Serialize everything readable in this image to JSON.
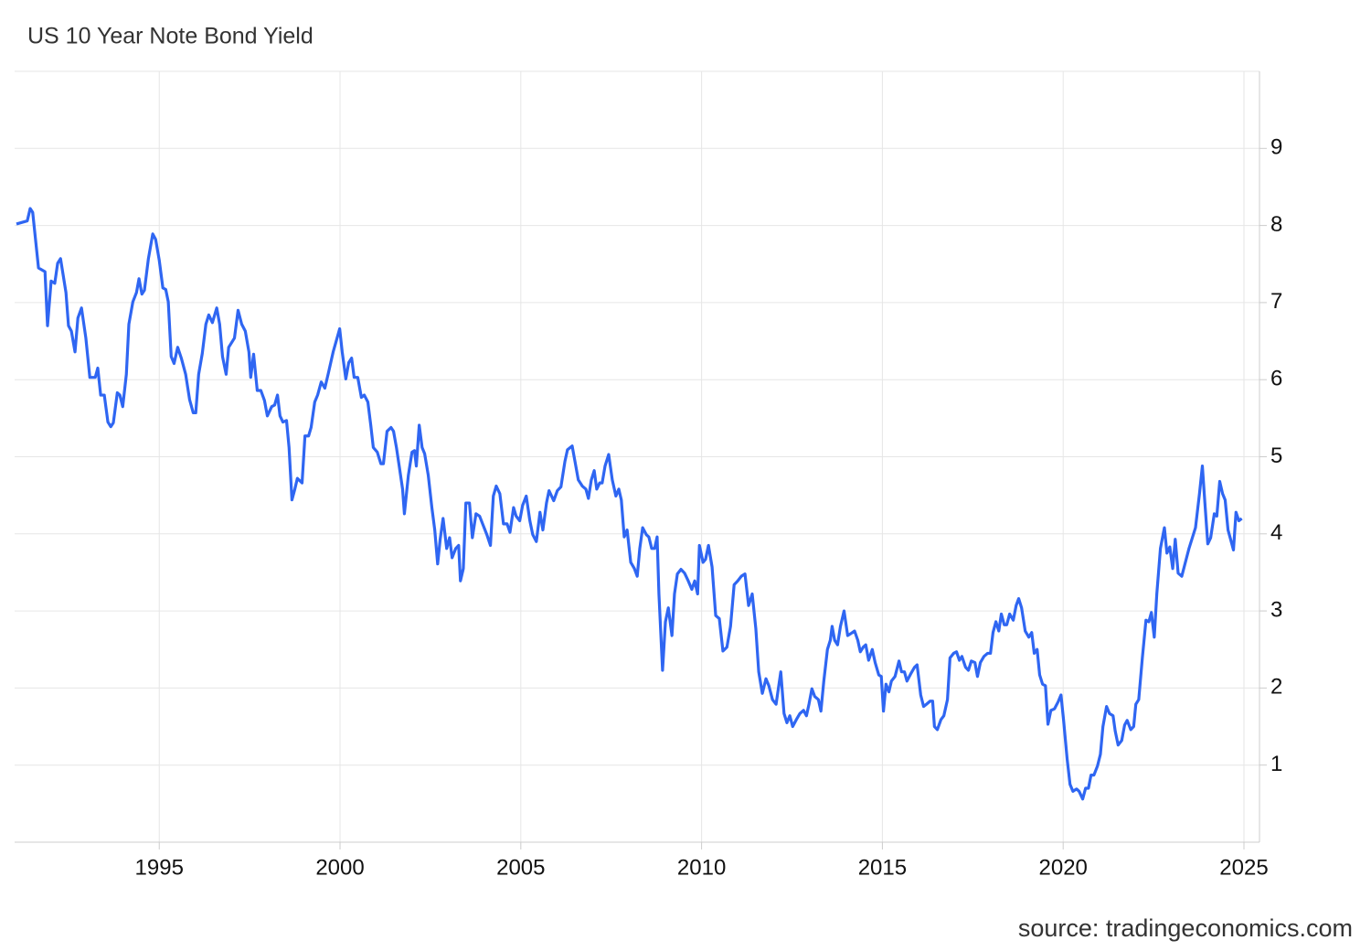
{
  "chart_data": {
    "type": "line",
    "title": "US 10 Year Note Bond Yield",
    "source": "source: tradingeconomics.com",
    "xlim": [
      1991,
      2025.43
    ],
    "xticks": [
      1995,
      2000,
      2005,
      2010,
      2015,
      2020,
      2025
    ],
    "ylim": [
      0,
      10
    ],
    "yticks": [
      1,
      2,
      3,
      4,
      5,
      6,
      7,
      8,
      9
    ],
    "grid": true,
    "series": [
      {
        "name": "US 10 Year Note Bond Yield",
        "color": "#2f66f2",
        "x": [
          1991.05,
          1991.35,
          1991.43,
          1991.5,
          1991.66,
          1991.84,
          1991.91,
          1992.01,
          1992.11,
          1992.19,
          1992.27,
          1992.42,
          1992.49,
          1992.57,
          1992.67,
          1992.75,
          1992.85,
          1992.97,
          1993.08,
          1993.23,
          1993.3,
          1993.38,
          1993.48,
          1993.58,
          1993.66,
          1993.73,
          1993.84,
          1993.91,
          1993.99,
          1994.09,
          1994.16,
          1994.27,
          1994.37,
          1994.44,
          1994.52,
          1994.59,
          1994.7,
          1994.82,
          1994.9,
          1995.0,
          1995.1,
          1995.18,
          1995.25,
          1995.33,
          1995.41,
          1995.51,
          1995.61,
          1995.73,
          1995.84,
          1995.94,
          1996.01,
          1996.09,
          1996.19,
          1996.29,
          1996.37,
          1996.47,
          1996.59,
          1996.67,
          1996.75,
          1996.85,
          1996.92,
          1997.08,
          1997.18,
          1997.28,
          1997.38,
          1997.48,
          1997.53,
          1997.61,
          1997.71,
          1997.81,
          1997.91,
          1997.99,
          1998.11,
          1998.19,
          1998.27,
          1998.34,
          1998.42,
          1998.52,
          1998.59,
          1998.67,
          1998.75,
          1998.82,
          1998.95,
          1999.03,
          1999.13,
          1999.2,
          1999.3,
          1999.38,
          1999.48,
          1999.58,
          1999.68,
          1999.81,
          1999.99,
          2000.06,
          2000.16,
          2000.24,
          2000.32,
          2000.39,
          2000.49,
          2000.59,
          2000.67,
          2000.77,
          2000.85,
          2000.92,
          2001.03,
          2001.13,
          2001.2,
          2001.3,
          2001.41,
          2001.48,
          2001.56,
          2001.63,
          2001.73,
          2001.78,
          2001.89,
          2001.99,
          2002.06,
          2002.11,
          2002.19,
          2002.27,
          2002.34,
          2002.44,
          2002.54,
          2002.62,
          2002.7,
          2002.77,
          2002.85,
          2002.95,
          2003.03,
          2003.1,
          2003.2,
          2003.28,
          2003.33,
          2003.41,
          2003.48,
          2003.58,
          2003.66,
          2003.76,
          2003.86,
          2003.96,
          2004.06,
          2004.16,
          2004.24,
          2004.32,
          2004.42,
          2004.52,
          2004.62,
          2004.7,
          2004.8,
          2004.87,
          2004.97,
          2005.05,
          2005.15,
          2005.25,
          2005.33,
          2005.43,
          2005.53,
          2005.61,
          2005.71,
          2005.78,
          2005.91,
          2006.01,
          2006.11,
          2006.22,
          2006.29,
          2006.42,
          2006.49,
          2006.59,
          2006.7,
          2006.8,
          2006.87,
          2006.95,
          2007.03,
          2007.1,
          2007.18,
          2007.25,
          2007.33,
          2007.43,
          2007.53,
          2007.63,
          2007.71,
          2007.78,
          2007.86,
          2007.94,
          2008.04,
          2008.14,
          2008.22,
          2008.29,
          2008.37,
          2008.47,
          2008.54,
          2008.62,
          2008.7,
          2008.77,
          2008.82,
          2008.92,
          2009.0,
          2009.08,
          2009.18,
          2009.25,
          2009.33,
          2009.43,
          2009.53,
          2009.63,
          2009.73,
          2009.81,
          2009.89,
          2009.94,
          2010.04,
          2010.11,
          2010.19,
          2010.29,
          2010.39,
          2010.49,
          2010.59,
          2010.7,
          2010.8,
          2010.9,
          2011.0,
          2011.1,
          2011.2,
          2011.3,
          2011.4,
          2011.5,
          2011.58,
          2011.68,
          2011.78,
          2011.86,
          2011.96,
          2012.06,
          2012.19,
          2012.28,
          2012.36,
          2012.44,
          2012.52,
          2012.62,
          2012.72,
          2012.82,
          2012.9,
          2012.97,
          2013.05,
          2013.13,
          2013.23,
          2013.3,
          2013.38,
          2013.48,
          2013.56,
          2013.61,
          2013.68,
          2013.76,
          2013.84,
          2013.94,
          2014.04,
          2014.14,
          2014.23,
          2014.32,
          2014.39,
          2014.47,
          2014.54,
          2014.62,
          2014.72,
          2014.8,
          2014.9,
          2014.97,
          2015.03,
          2015.1,
          2015.18,
          2015.25,
          2015.35,
          2015.46,
          2015.53,
          2015.61,
          2015.68,
          2015.78,
          2015.89,
          2015.96,
          2016.06,
          2016.14,
          2016.22,
          2016.32,
          2016.39,
          2016.44,
          2016.52,
          2016.62,
          2016.7,
          2016.8,
          2016.87,
          2016.97,
          2017.05,
          2017.13,
          2017.2,
          2017.3,
          2017.38,
          2017.46,
          2017.56,
          2017.63,
          2017.71,
          2017.81,
          2017.91,
          2017.99,
          2018.06,
          2018.14,
          2018.22,
          2018.29,
          2018.37,
          2018.44,
          2018.52,
          2018.62,
          2018.7,
          2018.77,
          2018.85,
          2018.95,
          2019.05,
          2019.13,
          2019.2,
          2019.28,
          2019.35,
          2019.43,
          2019.51,
          2019.58,
          2019.66,
          2019.76,
          2019.86,
          2019.94,
          2020.01,
          2020.11,
          2020.19,
          2020.27,
          2020.37,
          2020.44,
          2020.54,
          2020.62,
          2020.7,
          2020.77,
          2020.85,
          2020.95,
          2021.03,
          2021.1,
          2021.2,
          2021.28,
          2021.38,
          2021.44,
          2021.52,
          2021.62,
          2021.7,
          2021.77,
          2021.87,
          2021.95,
          2022.01,
          2022.09,
          2022.19,
          2022.29,
          2022.37,
          2022.44,
          2022.52,
          2022.59,
          2022.69,
          2022.8,
          2022.87,
          2022.95,
          2023.03,
          2023.1,
          2023.18,
          2023.28,
          2023.38,
          2023.48,
          2023.58,
          2023.66,
          2023.77,
          2023.85,
          2023.92,
          2024.0,
          2024.08,
          2024.18,
          2024.25,
          2024.33,
          2024.41,
          2024.48,
          2024.56,
          2024.63,
          2024.71,
          2024.78,
          2024.86,
          2024.94
        ],
        "values": [
          8.02,
          8.06,
          8.22,
          8.17,
          7.45,
          7.4,
          6.7,
          7.28,
          7.25,
          7.51,
          7.57,
          7.13,
          6.7,
          6.63,
          6.36,
          6.8,
          6.93,
          6.54,
          6.03,
          6.03,
          6.15,
          5.8,
          5.8,
          5.45,
          5.39,
          5.44,
          5.83,
          5.8,
          5.65,
          6.07,
          6.72,
          7.01,
          7.13,
          7.31,
          7.11,
          7.16,
          7.57,
          7.89,
          7.82,
          7.55,
          7.19,
          7.17,
          7.01,
          6.3,
          6.21,
          6.42,
          6.28,
          6.07,
          5.74,
          5.57,
          5.57,
          6.07,
          6.34,
          6.72,
          6.84,
          6.74,
          6.93,
          6.72,
          6.3,
          6.07,
          6.42,
          6.54,
          6.9,
          6.72,
          6.63,
          6.36,
          6.03,
          6.33,
          5.86,
          5.86,
          5.73,
          5.53,
          5.65,
          5.67,
          5.8,
          5.53,
          5.45,
          5.47,
          5.12,
          4.44,
          4.58,
          4.72,
          4.66,
          5.27,
          5.27,
          5.38,
          5.71,
          5.8,
          5.97,
          5.89,
          6.09,
          6.36,
          6.66,
          6.36,
          6.01,
          6.22,
          6.28,
          6.03,
          6.03,
          5.77,
          5.8,
          5.71,
          5.41,
          5.12,
          5.06,
          4.91,
          4.91,
          5.33,
          5.38,
          5.33,
          5.12,
          4.9,
          4.58,
          4.26,
          4.76,
          5.06,
          5.08,
          4.88,
          5.41,
          5.12,
          5.04,
          4.76,
          4.34,
          4.05,
          3.61,
          3.93,
          4.2,
          3.81,
          3.95,
          3.69,
          3.81,
          3.85,
          3.39,
          3.55,
          4.4,
          4.4,
          3.95,
          4.26,
          4.23,
          4.11,
          3.99,
          3.85,
          4.49,
          4.62,
          4.52,
          4.13,
          4.13,
          4.02,
          4.34,
          4.23,
          4.17,
          4.37,
          4.49,
          4.17,
          3.99,
          3.9,
          4.28,
          4.05,
          4.4,
          4.56,
          4.43,
          4.56,
          4.61,
          4.94,
          5.09,
          5.14,
          4.96,
          4.7,
          4.62,
          4.58,
          4.46,
          4.7,
          4.82,
          4.58,
          4.66,
          4.66,
          4.88,
          5.03,
          4.7,
          4.49,
          4.58,
          4.44,
          3.96,
          4.05,
          3.63,
          3.55,
          3.45,
          3.81,
          4.08,
          3.99,
          3.96,
          3.81,
          3.81,
          3.96,
          3.22,
          2.23,
          2.86,
          3.04,
          2.68,
          3.22,
          3.48,
          3.54,
          3.49,
          3.39,
          3.28,
          3.39,
          3.22,
          3.85,
          3.63,
          3.67,
          3.85,
          3.57,
          2.94,
          2.9,
          2.48,
          2.53,
          2.8,
          3.34,
          3.39,
          3.45,
          3.48,
          3.07,
          3.22,
          2.77,
          2.21,
          1.93,
          2.12,
          2.03,
          1.85,
          1.79,
          2.21,
          1.67,
          1.55,
          1.64,
          1.5,
          1.59,
          1.67,
          1.71,
          1.64,
          1.79,
          1.99,
          1.89,
          1.85,
          1.7,
          2.09,
          2.5,
          2.62,
          2.8,
          2.62,
          2.56,
          2.8,
          3.0,
          2.68,
          2.71,
          2.74,
          2.62,
          2.47,
          2.53,
          2.56,
          2.36,
          2.5,
          2.33,
          2.17,
          2.15,
          1.7,
          2.05,
          1.95,
          2.09,
          2.15,
          2.35,
          2.21,
          2.21,
          2.09,
          2.18,
          2.27,
          2.3,
          1.91,
          1.76,
          1.79,
          1.83,
          1.83,
          1.5,
          1.46,
          1.59,
          1.64,
          1.85,
          2.39,
          2.45,
          2.47,
          2.36,
          2.41,
          2.27,
          2.23,
          2.35,
          2.33,
          2.15,
          2.33,
          2.41,
          2.45,
          2.45,
          2.72,
          2.86,
          2.74,
          2.96,
          2.82,
          2.82,
          2.96,
          2.88,
          3.07,
          3.16,
          3.04,
          2.74,
          2.66,
          2.72,
          2.45,
          2.5,
          2.17,
          2.05,
          2.03,
          1.53,
          1.71,
          1.73,
          1.82,
          1.91,
          1.59,
          1.08,
          0.75,
          0.66,
          0.69,
          0.66,
          0.56,
          0.7,
          0.7,
          0.87,
          0.87,
          0.99,
          1.14,
          1.5,
          1.76,
          1.67,
          1.64,
          1.44,
          1.26,
          1.32,
          1.52,
          1.58,
          1.46,
          1.5,
          1.79,
          1.85,
          2.39,
          2.88,
          2.86,
          2.98,
          2.66,
          3.22,
          3.81,
          4.08,
          3.75,
          3.83,
          3.55,
          3.93,
          3.49,
          3.45,
          3.63,
          3.81,
          3.96,
          4.08,
          4.52,
          4.88,
          4.4,
          3.87,
          3.95,
          4.26,
          4.23,
          4.68,
          4.52,
          4.44,
          4.05,
          3.93,
          3.79,
          4.28,
          4.17,
          4.2
        ]
      }
    ]
  }
}
